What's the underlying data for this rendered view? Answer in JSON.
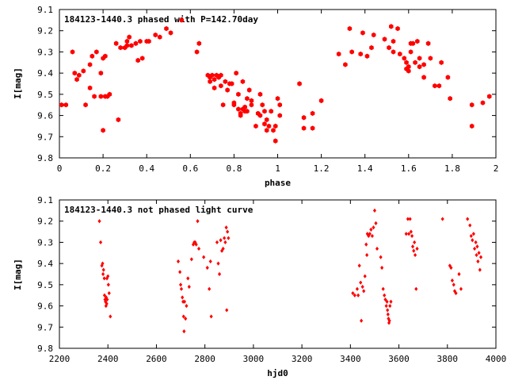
{
  "chart_data": [
    {
      "type": "scatter",
      "title": "184123-1440.3 phased with P=142.70day",
      "xlabel": "phase",
      "ylabel": "I[mag]",
      "xlim": [
        0,
        2
      ],
      "ylim": [
        9.8,
        9.1
      ],
      "y_inverted": true,
      "xticks": [
        0,
        0.2,
        0.4,
        0.6,
        0.8,
        1,
        1.2,
        1.4,
        1.6,
        1.8,
        2
      ],
      "xtick_labels": [
        "0",
        "0.2",
        "0.4",
        "0.6",
        "0.8",
        "1",
        "1.2",
        "1.4",
        "1.6",
        "1.8",
        "2"
      ],
      "yticks": [
        9.1,
        9.2,
        9.3,
        9.4,
        9.5,
        9.6,
        9.7,
        9.8
      ],
      "ytick_labels": [
        "9.1",
        "9.2",
        "9.3",
        "9.4",
        "9.5",
        "9.6",
        "9.7",
        "9.8"
      ],
      "grid": false,
      "color": "#ff0000",
      "marker": "filled-hexagon",
      "points": [
        [
          0.01,
          9.55
        ],
        [
          0.03,
          9.55
        ],
        [
          0.06,
          9.3
        ],
        [
          0.07,
          9.4
        ],
        [
          0.08,
          9.43
        ],
        [
          0.09,
          9.41
        ],
        [
          0.11,
          9.39
        ],
        [
          0.12,
          9.55
        ],
        [
          0.14,
          9.47
        ],
        [
          0.14,
          9.36
        ],
        [
          0.15,
          9.32
        ],
        [
          0.16,
          9.51
        ],
        [
          0.17,
          9.3
        ],
        [
          0.19,
          9.51
        ],
        [
          0.19,
          9.4
        ],
        [
          0.2,
          9.33
        ],
        [
          0.2,
          9.67
        ],
        [
          0.21,
          9.51
        ],
        [
          0.21,
          9.32
        ],
        [
          0.22,
          9.51
        ],
        [
          0.23,
          9.5
        ],
        [
          0.26,
          9.26
        ],
        [
          0.27,
          9.62
        ],
        [
          0.28,
          9.28
        ],
        [
          0.3,
          9.28
        ],
        [
          0.31,
          9.27
        ],
        [
          0.31,
          9.25
        ],
        [
          0.32,
          9.23
        ],
        [
          0.33,
          9.27
        ],
        [
          0.35,
          9.26
        ],
        [
          0.36,
          9.34
        ],
        [
          0.37,
          9.25
        ],
        [
          0.38,
          9.33
        ],
        [
          0.4,
          9.25
        ],
        [
          0.41,
          9.25
        ],
        [
          0.44,
          9.22
        ],
        [
          0.46,
          9.23
        ],
        [
          0.49,
          9.19
        ],
        [
          0.51,
          9.21
        ],
        [
          0.56,
          9.15
        ],
        [
          0.63,
          9.3
        ],
        [
          0.64,
          9.26
        ],
        [
          0.68,
          9.41
        ],
        [
          0.69,
          9.42
        ],
        [
          0.69,
          9.44
        ],
        [
          0.7,
          9.41
        ],
        [
          0.71,
          9.43
        ],
        [
          0.71,
          9.47
        ],
        [
          0.72,
          9.41
        ],
        [
          0.73,
          9.42
        ],
        [
          0.74,
          9.46
        ],
        [
          0.74,
          9.41
        ],
        [
          0.75,
          9.55
        ],
        [
          0.76,
          9.44
        ],
        [
          0.77,
          9.48
        ],
        [
          0.78,
          9.45
        ],
        [
          0.79,
          9.45
        ],
        [
          0.8,
          9.55
        ],
        [
          0.8,
          9.54
        ],
        [
          0.81,
          9.4
        ],
        [
          0.82,
          9.5
        ],
        [
          0.82,
          9.57
        ],
        [
          0.83,
          9.6
        ],
        [
          0.83,
          9.59
        ],
        [
          0.84,
          9.57
        ],
        [
          0.84,
          9.44
        ],
        [
          0.85,
          9.58
        ],
        [
          0.85,
          9.56
        ],
        [
          0.86,
          9.52
        ],
        [
          0.86,
          9.58
        ],
        [
          0.87,
          9.48
        ],
        [
          0.88,
          9.53
        ],
        [
          0.88,
          9.55
        ],
        [
          0.9,
          9.65
        ],
        [
          0.91,
          9.59
        ],
        [
          0.92,
          9.6
        ],
        [
          0.92,
          9.5
        ],
        [
          0.93,
          9.55
        ],
        [
          0.94,
          9.58
        ],
        [
          0.94,
          9.64
        ],
        [
          0.95,
          9.67
        ],
        [
          0.95,
          9.62
        ],
        [
          0.96,
          9.65
        ],
        [
          0.97,
          9.58
        ],
        [
          0.98,
          9.67
        ],
        [
          0.99,
          9.72
        ],
        [
          0.99,
          9.65
        ],
        [
          1.0,
          9.52
        ],
        [
          1.01,
          9.55
        ],
        [
          1.01,
          9.6
        ],
        [
          1.1,
          9.45
        ],
        [
          1.12,
          9.61
        ],
        [
          1.12,
          9.66
        ],
        [
          1.16,
          9.59
        ],
        [
          1.16,
          9.66
        ],
        [
          1.2,
          9.53
        ],
        [
          1.28,
          9.31
        ],
        [
          1.31,
          9.36
        ],
        [
          1.33,
          9.19
        ],
        [
          1.34,
          9.3
        ],
        [
          1.38,
          9.31
        ],
        [
          1.39,
          9.21
        ],
        [
          1.41,
          9.32
        ],
        [
          1.43,
          9.28
        ],
        [
          1.44,
          9.22
        ],
        [
          1.49,
          9.24
        ],
        [
          1.51,
          9.28
        ],
        [
          1.52,
          9.18
        ],
        [
          1.53,
          9.25
        ],
        [
          1.53,
          9.3
        ],
        [
          1.55,
          9.19
        ],
        [
          1.56,
          9.31
        ],
        [
          1.58,
          9.33
        ],
        [
          1.59,
          9.35
        ],
        [
          1.59,
          9.38
        ],
        [
          1.6,
          9.37
        ],
        [
          1.6,
          9.39
        ],
        [
          1.61,
          9.3
        ],
        [
          1.61,
          9.26
        ],
        [
          1.62,
          9.26
        ],
        [
          1.63,
          9.35
        ],
        [
          1.64,
          9.25
        ],
        [
          1.65,
          9.33
        ],
        [
          1.65,
          9.37
        ],
        [
          1.67,
          9.36
        ],
        [
          1.67,
          9.42
        ],
        [
          1.69,
          9.26
        ],
        [
          1.7,
          9.33
        ],
        [
          1.72,
          9.46
        ],
        [
          1.74,
          9.46
        ],
        [
          1.75,
          9.35
        ],
        [
          1.78,
          9.42
        ],
        [
          1.79,
          9.52
        ],
        [
          1.89,
          9.55
        ],
        [
          1.89,
          9.65
        ],
        [
          1.94,
          9.54
        ],
        [
          1.97,
          9.51
        ]
      ]
    },
    {
      "type": "scatter",
      "title": "184123-1440.3 not phased light curve",
      "xlabel": "hjd0",
      "ylabel": "I[mag]",
      "xlim": [
        2200,
        4000
      ],
      "ylim": [
        9.8,
        9.1
      ],
      "y_inverted": true,
      "xticks": [
        2200,
        2400,
        2600,
        2800,
        3000,
        3200,
        3400,
        3600,
        3800,
        4000
      ],
      "xtick_labels": [
        "2200",
        "2400",
        "2600",
        "2800",
        "3000",
        "3200",
        "3400",
        "3600",
        "3800",
        "4000"
      ],
      "yticks": [
        9.1,
        9.2,
        9.3,
        9.4,
        9.5,
        9.6,
        9.7,
        9.8
      ],
      "ytick_labels": [
        "9.1",
        "9.2",
        "9.3",
        "9.4",
        "9.5",
        "9.6",
        "9.7",
        "9.8"
      ],
      "grid": false,
      "color": "#ff0000",
      "marker": "filled-diamond",
      "points": [
        [
          2365,
          9.2
        ],
        [
          2370,
          9.3
        ],
        [
          2375,
          9.41
        ],
        [
          2378,
          9.4
        ],
        [
          2380,
          9.45
        ],
        [
          2382,
          9.43
        ],
        [
          2385,
          9.47
        ],
        [
          2386,
          9.55
        ],
        [
          2388,
          9.57
        ],
        [
          2390,
          9.58
        ],
        [
          2392,
          9.6
        ],
        [
          2393,
          9.56
        ],
        [
          2395,
          9.59
        ],
        [
          2396,
          9.47
        ],
        [
          2397,
          9.57
        ],
        [
          2400,
          9.46
        ],
        [
          2402,
          9.5
        ],
        [
          2405,
          9.54
        ],
        [
          2410,
          9.65
        ],
        [
          2690,
          9.39
        ],
        [
          2697,
          9.44
        ],
        [
          2700,
          9.5
        ],
        [
          2703,
          9.52
        ],
        [
          2707,
          9.56
        ],
        [
          2710,
          9.58
        ],
        [
          2712,
          9.65
        ],
        [
          2714,
          9.72
        ],
        [
          2716,
          9.58
        ],
        [
          2720,
          9.66
        ],
        [
          2724,
          9.6
        ],
        [
          2730,
          9.47
        ],
        [
          2735,
          9.51
        ],
        [
          2745,
          9.38
        ],
        [
          2752,
          9.31
        ],
        [
          2756,
          9.3
        ],
        [
          2760,
          9.3
        ],
        [
          2764,
          9.31
        ],
        [
          2770,
          9.2
        ],
        [
          2775,
          9.33
        ],
        [
          2795,
          9.37
        ],
        [
          2810,
          9.42
        ],
        [
          2818,
          9.52
        ],
        [
          2823,
          9.39
        ],
        [
          2826,
          9.65
        ],
        [
          2850,
          9.3
        ],
        [
          2855,
          9.4
        ],
        [
          2860,
          9.45
        ],
        [
          2865,
          9.29
        ],
        [
          2870,
          9.34
        ],
        [
          2875,
          9.33
        ],
        [
          2880,
          9.28
        ],
        [
          2884,
          9.3
        ],
        [
          2888,
          9.23
        ],
        [
          2890,
          9.62
        ],
        [
          2893,
          9.25
        ],
        [
          2897,
          9.28
        ],
        [
          3410,
          9.54
        ],
        [
          3418,
          9.55
        ],
        [
          3428,
          9.52
        ],
        [
          3432,
          9.55
        ],
        [
          3437,
          9.41
        ],
        [
          3442,
          9.49
        ],
        [
          3445,
          9.67
        ],
        [
          3450,
          9.51
        ],
        [
          3455,
          9.53
        ],
        [
          3460,
          9.46
        ],
        [
          3465,
          9.31
        ],
        [
          3468,
          9.36
        ],
        [
          3470,
          9.26
        ],
        [
          3475,
          9.27
        ],
        [
          3480,
          9.26
        ],
        [
          3485,
          9.24
        ],
        [
          3490,
          9.27
        ],
        [
          3495,
          9.23
        ],
        [
          3500,
          9.15
        ],
        [
          3505,
          9.21
        ],
        [
          3510,
          9.33
        ],
        [
          3525,
          9.37
        ],
        [
          3530,
          9.42
        ],
        [
          3535,
          9.52
        ],
        [
          3540,
          9.55
        ],
        [
          3544,
          9.57
        ],
        [
          3548,
          9.6
        ],
        [
          3551,
          9.58
        ],
        [
          3553,
          9.62
        ],
        [
          3555,
          9.64
        ],
        [
          3557,
          9.66
        ],
        [
          3559,
          9.68
        ],
        [
          3561,
          9.67
        ],
        [
          3563,
          9.6
        ],
        [
          3567,
          9.58
        ],
        [
          3630,
          9.26
        ],
        [
          3637,
          9.19
        ],
        [
          3641,
          9.26
        ],
        [
          3646,
          9.19
        ],
        [
          3650,
          9.25
        ],
        [
          3654,
          9.27
        ],
        [
          3657,
          9.32
        ],
        [
          3661,
          9.34
        ],
        [
          3664,
          9.3
        ],
        [
          3667,
          9.36
        ],
        [
          3671,
          9.52
        ],
        [
          3675,
          9.33
        ],
        [
          3780,
          9.19
        ],
        [
          3810,
          9.41
        ],
        [
          3815,
          9.42
        ],
        [
          3820,
          9.48
        ],
        [
          3826,
          9.5
        ],
        [
          3830,
          9.53
        ],
        [
          3835,
          9.54
        ],
        [
          3848,
          9.45
        ],
        [
          3856,
          9.52
        ],
        [
          3883,
          9.19
        ],
        [
          3893,
          9.22
        ],
        [
          3898,
          9.27
        ],
        [
          3903,
          9.29
        ],
        [
          3908,
          9.26
        ],
        [
          3912,
          9.33
        ],
        [
          3917,
          9.3
        ],
        [
          3920,
          9.36
        ],
        [
          3923,
          9.32
        ],
        [
          3926,
          9.39
        ],
        [
          3930,
          9.35
        ],
        [
          3934,
          9.43
        ],
        [
          3938,
          9.37
        ]
      ]
    }
  ]
}
